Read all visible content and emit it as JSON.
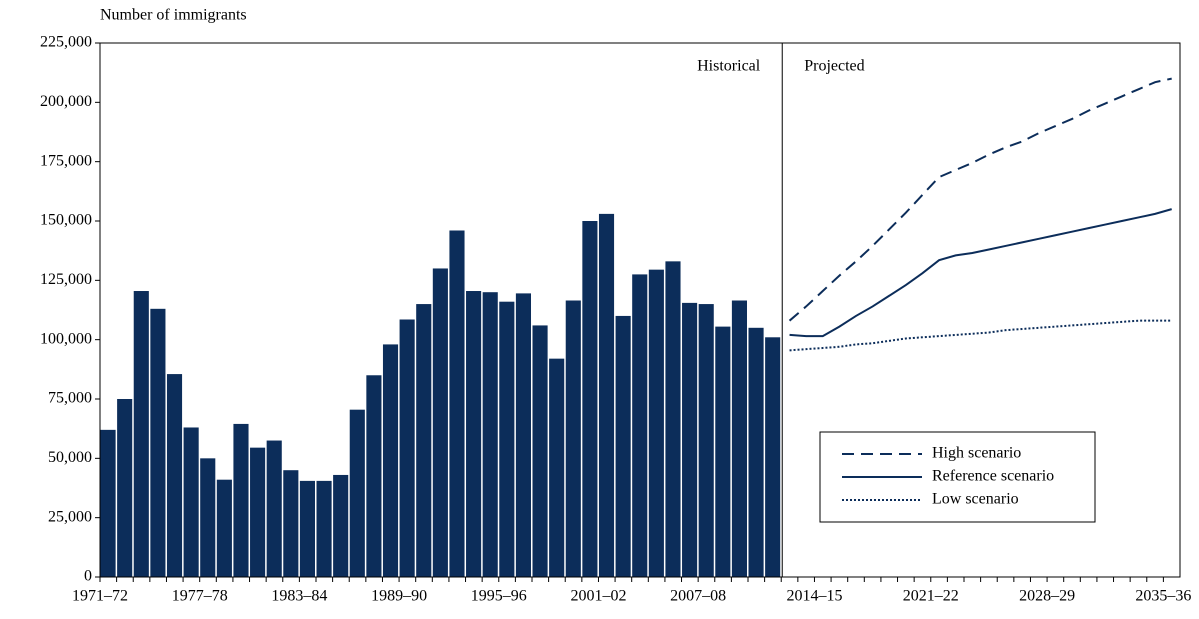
{
  "chart_data": {
    "type": "combo",
    "y_label": "Number of immigrants",
    "annotations": [
      "Historical",
      "Projected"
    ],
    "categories": [
      "1971–72",
      null,
      null,
      null,
      null,
      null,
      "1977–78",
      null,
      null,
      null,
      null,
      null,
      "1983–84",
      null,
      null,
      null,
      null,
      null,
      "1989–90",
      null,
      null,
      null,
      null,
      null,
      "1995–96",
      null,
      null,
      null,
      null,
      null,
      "2001–02",
      null,
      null,
      null,
      null,
      null,
      "2007–08",
      null,
      null,
      null,
      null,
      null,
      null,
      "2014–15",
      null,
      null,
      null,
      null,
      null,
      null,
      "2021–22",
      null,
      null,
      null,
      null,
      null,
      null,
      "2028–29",
      null,
      null,
      null,
      null,
      null,
      null,
      "2035–36"
    ],
    "series": [
      {
        "type": "bar",
        "color": "#0c2d5a",
        "values": [
          62000,
          75000,
          120500,
          113000,
          85500,
          63000,
          50000,
          41000,
          64500,
          54500,
          57500,
          45000,
          40500,
          40500,
          43000,
          70500,
          85000,
          98000,
          108500,
          115000,
          130000,
          146000,
          120500,
          120000,
          116000,
          119500,
          106000,
          92000,
          116500,
          150000,
          153000,
          110000,
          127500,
          129500,
          133000,
          115500,
          115000,
          105500,
          116500,
          105000,
          101000,
          null,
          null,
          null,
          null,
          null,
          null,
          null,
          null,
          null,
          null,
          null,
          null,
          null,
          null,
          null,
          null,
          null,
          null,
          null,
          null,
          null,
          null,
          null,
          null
        ]
      },
      {
        "type": "line",
        "name": "High scenario",
        "color": "#0c2d5a",
        "line_style": "dashed",
        "values": [
          null,
          null,
          null,
          null,
          null,
          null,
          null,
          null,
          null,
          null,
          null,
          null,
          null,
          null,
          null,
          null,
          null,
          null,
          null,
          null,
          null,
          null,
          null,
          null,
          null,
          null,
          null,
          null,
          null,
          null,
          null,
          null,
          null,
          null,
          null,
          null,
          null,
          null,
          null,
          null,
          null,
          108000,
          114000,
          120500,
          127000,
          133000,
          139500,
          146500,
          153500,
          161000,
          168500,
          171500,
          174500,
          178000,
          181000,
          183500,
          187000,
          190000,
          193000,
          196500,
          199500,
          202500,
          205500,
          208500,
          210000
        ]
      },
      {
        "type": "line",
        "name": "Reference scenario",
        "color": "#0c2d5a",
        "line_style": "solid",
        "values": [
          null,
          null,
          null,
          null,
          null,
          null,
          null,
          null,
          null,
          null,
          null,
          null,
          null,
          null,
          null,
          null,
          null,
          null,
          null,
          null,
          null,
          null,
          null,
          null,
          null,
          null,
          null,
          null,
          null,
          null,
          null,
          null,
          null,
          null,
          null,
          null,
          null,
          null,
          null,
          null,
          null,
          102000,
          101500,
          101500,
          105500,
          110000,
          114000,
          118500,
          123000,
          128000,
          133500,
          135500,
          136500,
          138000,
          139500,
          141000,
          142500,
          144000,
          145500,
          147000,
          148500,
          150000,
          151500,
          153000,
          155000
        ]
      },
      {
        "type": "line",
        "name": "Low scenario",
        "color": "#0c2d5a",
        "line_style": "dotted",
        "values": [
          null,
          null,
          null,
          null,
          null,
          null,
          null,
          null,
          null,
          null,
          null,
          null,
          null,
          null,
          null,
          null,
          null,
          null,
          null,
          null,
          null,
          null,
          null,
          null,
          null,
          null,
          null,
          null,
          null,
          null,
          null,
          null,
          null,
          null,
          null,
          null,
          null,
          null,
          null,
          null,
          null,
          95500,
          96000,
          96500,
          97000,
          98000,
          98500,
          99500,
          100500,
          101000,
          101500,
          102000,
          102500,
          103000,
          104000,
          104500,
          105000,
          105500,
          106000,
          106500,
          107000,
          107500,
          108000,
          108000,
          108000
        ]
      }
    ],
    "ylim": [
      0,
      225000
    ],
    "yticks": [
      0,
      {
        "value": 25000,
        "label": "25,000"
      },
      {
        "value": 50000,
        "label": "50,000"
      },
      {
        "value": 75000,
        "label": "75,000"
      },
      {
        "value": 100000,
        "label": "100,000"
      },
      {
        "value": 125000,
        "label": "125,000"
      },
      {
        "value": 150000,
        "label": "150,000"
      },
      {
        "value": 175000,
        "label": "175,000"
      },
      {
        "value": 200000,
        "label": "200,000"
      },
      {
        "value": 225000,
        "label": "225,000"
      }
    ],
    "grid": false,
    "legend": "lower right"
  }
}
